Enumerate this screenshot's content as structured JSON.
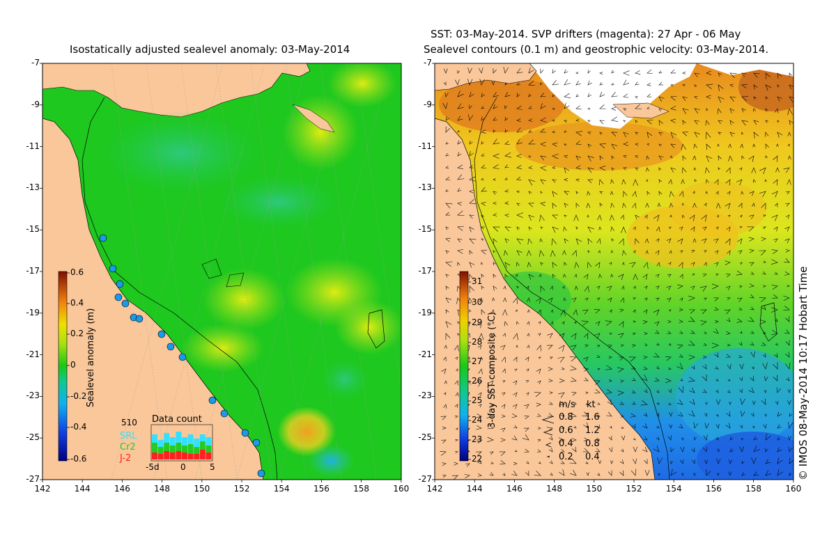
{
  "left_map": {
    "title": "Isostatically adjusted sealevel anomaly: 03-May-2014",
    "y_ticks": [
      "-7",
      "-9",
      "-11",
      "-13",
      "-15",
      "-17",
      "-19",
      "-21",
      "-23",
      "-25",
      "-27"
    ],
    "x_ticks": [
      "142",
      "144",
      "146",
      "148",
      "150",
      "152",
      "154",
      "156",
      "158",
      "160"
    ],
    "colorbar": {
      "title": "Sealevel anomaly (m)",
      "ticks": [
        "0.6",
        "0.4",
        "0.2",
        "0",
        "-0.2",
        "-0.4",
        "-0.6"
      ],
      "range": [
        -0.6,
        0.6
      ]
    },
    "data_count": {
      "title": "Data count",
      "max_label": "510",
      "series": [
        "SRL",
        "Cr2",
        "J-2"
      ],
      "series_colors": [
        "#33e0ff",
        "#22cc22",
        "#ff2020"
      ],
      "x_labels": [
        "-5d",
        "0",
        "5"
      ]
    }
  },
  "right_map": {
    "title_line1": "SST: 03-May-2014. SVP drifters (magenta): 27 Apr - 06 May",
    "title_line2": "Sealevel contours (0.1 m) and geostrophic velocity: 03-May-2014.",
    "y_ticks": [
      "-7",
      "-9",
      "-11",
      "-13",
      "-15",
      "-17",
      "-19",
      "-21",
      "-23",
      "-25",
      "-27"
    ],
    "x_ticks": [
      "142",
      "144",
      "146",
      "148",
      "150",
      "152",
      "154",
      "156",
      "158",
      "160"
    ],
    "colorbar": {
      "title": "3-day SST composite (°C)",
      "ticks": [
        "31",
        "30",
        "29",
        "28",
        "27",
        "26",
        "25",
        "24",
        "23",
        "22"
      ],
      "range": [
        22,
        31.5
      ]
    },
    "velocity_legend": {
      "header_ms": "m/s",
      "header_kt": "kt",
      "rows": [
        {
          "ms": "0.8",
          "kt": "1.6"
        },
        {
          "ms": "0.6",
          "kt": "1.2"
        },
        {
          "ms": "0.4",
          "kt": "0.8"
        },
        {
          "ms": "0.2",
          "kt": "0.4"
        }
      ]
    }
  },
  "credit": "© IMOS 08-May-2014 10:17 Hobart Time",
  "colors": {
    "land": "#f9c79a",
    "sla_neutral": "#1ec81e",
    "sla_high": "#f5e600",
    "sst_warm": "#f08c1e",
    "sst_cool": "#1e7ff0",
    "clouds": "#ffffff"
  }
}
